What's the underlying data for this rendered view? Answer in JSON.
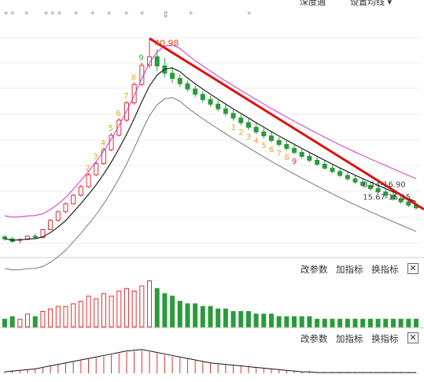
{
  "top_menu": {
    "left": "深度通",
    "right": "设置均线",
    "right_arrow": "▾"
  },
  "price_panel": {
    "high_label": "40.98",
    "annotation_box": "8.14-16.90",
    "annotation_sub": "15.67-15.15",
    "countdown_left": [
      "2",
      "3",
      "4",
      "5",
      "6",
      "7",
      "8",
      "9"
    ],
    "countdown_right": [
      "1",
      "2",
      "3",
      "4",
      "5",
      "6",
      "7",
      "8",
      "9"
    ],
    "star_marks": [
      "*",
      "*",
      "*",
      "*",
      "*",
      "*",
      "*",
      "*",
      "*",
      "*",
      "*",
      "*",
      "*"
    ],
    "arrow_marks": [
      "⇕"
    ],
    "colors": {
      "up": "#e03030",
      "down": "#2a9a3a",
      "ma_upper": "#cc33cc",
      "ma_mid": "#111111",
      "ma_lower": "#777777",
      "trendline": "#e01010",
      "count_orange": "#f0a020",
      "count_red": "#e03030",
      "count_green": "#30b030"
    }
  },
  "volume_panel": {
    "tools": {
      "params": "改参数",
      "add": "加指标",
      "switch": "换指标",
      "close": "✕"
    }
  },
  "macd_panel": {
    "tools": {
      "params": "改参数",
      "add": "加指标",
      "switch": "换指标",
      "close": "✕"
    }
  },
  "chart_data": [
    {
      "type": "candlestick",
      "title": "",
      "price_range": [
        8,
        45
      ],
      "grid": true,
      "series": [
        {
          "name": "",
          "ohlc": [
            [
              10.9,
              11.2,
              10.3,
              10.6
            ],
            [
              10.6,
              10.9,
              10.0,
              10.2
            ],
            [
              10.4,
              10.7,
              9.9,
              10.5
            ],
            [
              10.5,
              11.1,
              10.4,
              11.0
            ],
            [
              11.0,
              11.4,
              10.6,
              10.8
            ],
            [
              10.8,
              12.1,
              10.7,
              12.0
            ],
            [
              12.0,
              13.6,
              11.9,
              13.4
            ],
            [
              13.4,
              14.9,
              13.2,
              14.7
            ],
            [
              14.7,
              16.1,
              14.5,
              15.9
            ],
            [
              15.9,
              17.4,
              15.8,
              17.2
            ],
            [
              17.2,
              18.8,
              17.0,
              18.5
            ],
            [
              18.5,
              20.6,
              18.3,
              20.3
            ],
            [
              20.3,
              22.3,
              20.1,
              22.0
            ],
            [
              22.0,
              24.4,
              21.8,
              24.1
            ],
            [
              24.1,
              26.6,
              23.9,
              26.3
            ],
            [
              26.3,
              28.9,
              26.1,
              28.6
            ],
            [
              28.6,
              31.5,
              28.3,
              31.2
            ],
            [
              31.2,
              34.3,
              30.9,
              34.0
            ],
            [
              34.0,
              37.3,
              33.7,
              36.9
            ],
            [
              36.9,
              40.98,
              36.5,
              38.2
            ],
            [
              38.2,
              39.3,
              36.0,
              36.8
            ],
            [
              36.8,
              38.0,
              35.1,
              35.7
            ],
            [
              35.7,
              36.6,
              34.2,
              34.9
            ],
            [
              34.9,
              35.5,
              33.6,
              34.1
            ],
            [
              34.1,
              34.6,
              32.9,
              33.3
            ],
            [
              33.3,
              33.8,
              32.1,
              32.5
            ],
            [
              32.5,
              33.0,
              31.3,
              31.7
            ],
            [
              31.7,
              32.3,
              30.6,
              31.0
            ],
            [
              31.0,
              31.6,
              29.9,
              30.3
            ],
            [
              30.3,
              30.9,
              29.2,
              29.6
            ],
            [
              29.6,
              30.2,
              28.5,
              28.9
            ],
            [
              28.9,
              29.4,
              27.8,
              28.2
            ],
            [
              28.2,
              28.8,
              27.1,
              27.5
            ],
            [
              27.5,
              28.1,
              26.5,
              26.8
            ],
            [
              26.8,
              27.4,
              25.8,
              26.2
            ],
            [
              26.2,
              26.8,
              25.2,
              25.5
            ],
            [
              25.5,
              26.0,
              24.6,
              24.9
            ],
            [
              24.9,
              25.4,
              24.0,
              24.3
            ],
            [
              24.3,
              24.8,
              23.4,
              23.7
            ],
            [
              23.7,
              24.2,
              22.8,
              23.1
            ],
            [
              23.1,
              23.6,
              22.2,
              22.5
            ],
            [
              22.5,
              23.0,
              21.6,
              21.9
            ],
            [
              21.9,
              22.4,
              21.1,
              21.3
            ],
            [
              21.3,
              21.8,
              20.5,
              20.8
            ],
            [
              20.8,
              21.3,
              20.0,
              20.2
            ],
            [
              20.2,
              20.7,
              19.4,
              19.7
            ],
            [
              19.7,
              20.2,
              18.9,
              19.2
            ],
            [
              19.2,
              19.7,
              18.4,
              18.7
            ],
            [
              18.7,
              19.2,
              17.9,
              18.2
            ],
            [
              18.2,
              18.7,
              17.4,
              17.7
            ],
            [
              17.7,
              18.2,
              16.9,
              17.2
            ],
            [
              17.2,
              17.7,
              16.4,
              16.7
            ],
            [
              16.7,
              17.1,
              15.9,
              16.2
            ],
            [
              16.2,
              16.6,
              15.4,
              15.7
            ],
            [
              15.7,
              16.1,
              15.0,
              15.3
            ]
          ]
        }
      ]
    },
    {
      "type": "bar",
      "title": "",
      "values": [
        3,
        4,
        3,
        5,
        4,
        6,
        7,
        8,
        8,
        9,
        10,
        12,
        11,
        13,
        12,
        14,
        15,
        14,
        16,
        18,
        15,
        13,
        12,
        10,
        9,
        9,
        8,
        8,
        7,
        7,
        6,
        6,
        6,
        5,
        5,
        5,
        4,
        4,
        4,
        4,
        4,
        3,
        3,
        3,
        3,
        3,
        3,
        3,
        3,
        3,
        3,
        3,
        3,
        3,
        3
      ],
      "ylim": [
        0,
        20
      ]
    },
    {
      "type": "bar",
      "title": "",
      "values": [
        0.2,
        0.3,
        0.4,
        0.5,
        0.6,
        0.8,
        1.0,
        1.2,
        1.4,
        1.6,
        1.8,
        2.0,
        2.2,
        2.4,
        2.6,
        2.8,
        3.0,
        3.1,
        3.2,
        3.0,
        2.8,
        2.6,
        2.4,
        2.2,
        2.0,
        1.8,
        1.6,
        1.4,
        1.3,
        1.2,
        1.1,
        1.0,
        0.9,
        0.8,
        0.7,
        0.6,
        0.5,
        0.4,
        0.3,
        0.2,
        0.2,
        0.1,
        0.1,
        0.1,
        0.1,
        0.1,
        0.1,
        0.1,
        0.1,
        0.1,
        0.1,
        0.1,
        0.1,
        0.1,
        0.1
      ],
      "ylim": [
        -1,
        4
      ]
    }
  ]
}
